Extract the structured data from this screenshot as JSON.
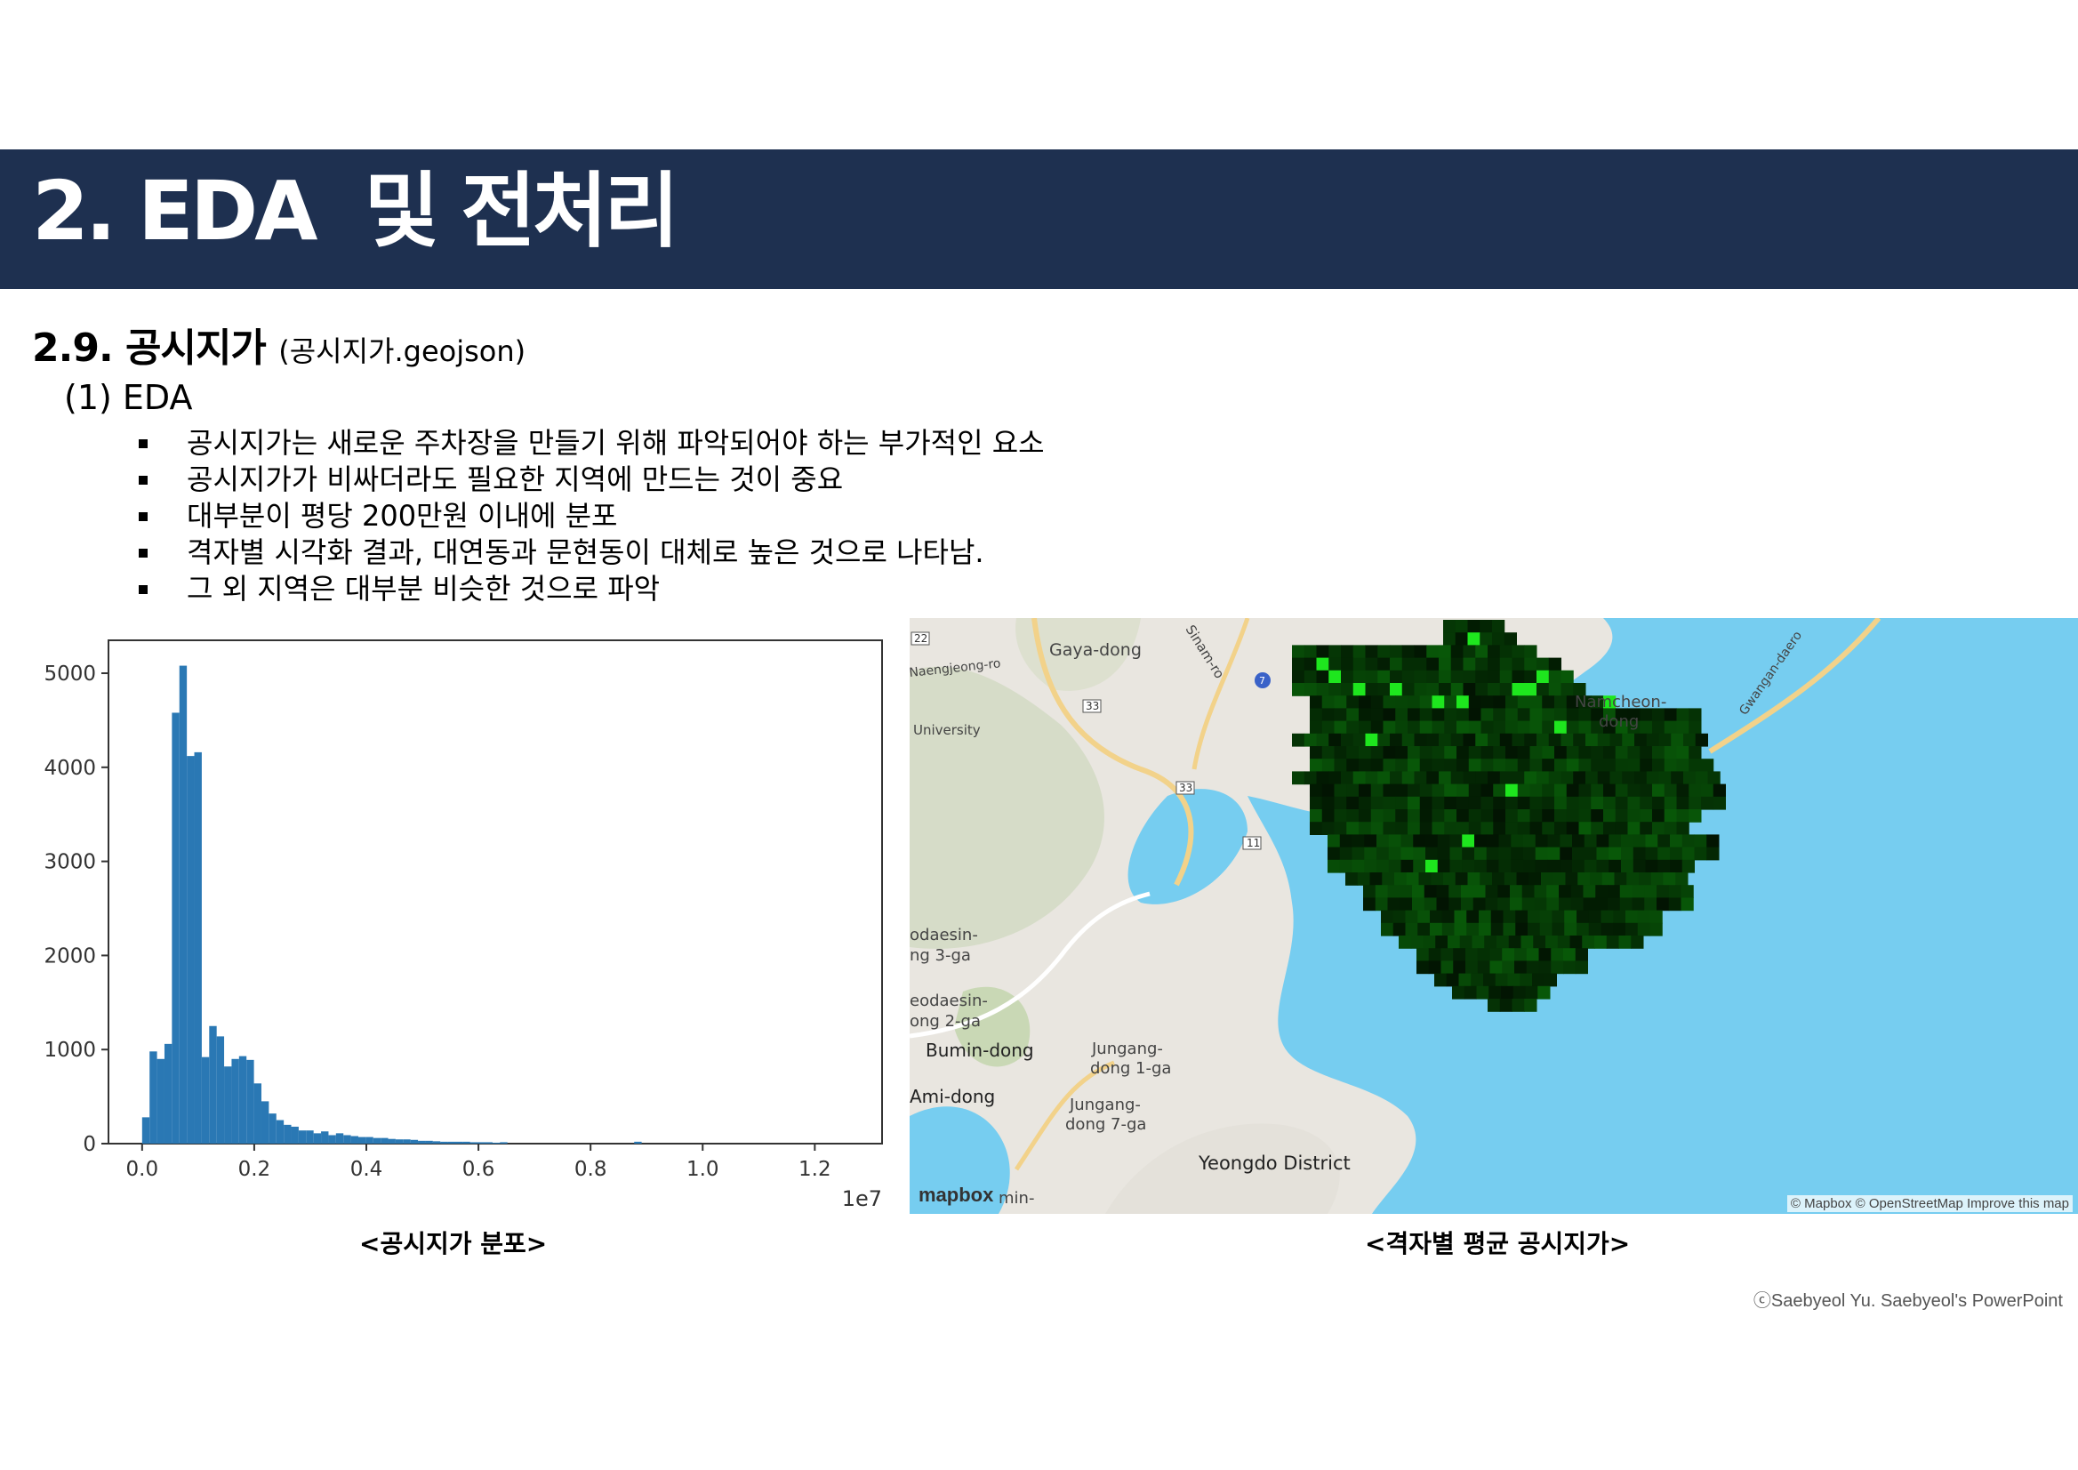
{
  "header": {
    "title": "2. EDA  및 전처리"
  },
  "section": {
    "title": "2.9. 공시지가",
    "subtitle": "(공시지가.geojson)"
  },
  "subsection": {
    "title": "(1) EDA"
  },
  "bullets": [
    "공시지가는 새로운 주차장을 만들기 위해 파악되어야 하는 부가적인 요소",
    "공시지가가 비싸더라도 필요한 지역에 만드는 것이 중요",
    "대부분이 평당 200만원 이내에 분포",
    "격자별 시각화 결과, 대연동과 문현동이 대체로 높은 것으로 나타남.",
    "그 외 지역은 대부분 비슷한 것으로 파악"
  ],
  "chart_data": {
    "type": "bar",
    "title": "",
    "xlabel": "",
    "ylabel": "",
    "x_multiplier_label": "1e7",
    "xlim": [
      -0.06,
      1.32
    ],
    "ylim": [
      0,
      5350
    ],
    "xticks": [
      0.0,
      0.2,
      0.4,
      0.6,
      0.8,
      1.0,
      1.2
    ],
    "xtick_labels": [
      "0.0",
      "0.2",
      "0.4",
      "0.6",
      "0.8",
      "1.0",
      "1.2"
    ],
    "yticks": [
      0,
      1000,
      2000,
      3000,
      4000,
      5000
    ],
    "ytick_labels": [
      "0",
      "1000",
      "2000",
      "3000",
      "4000",
      "5000"
    ],
    "bin_width": 0.0133,
    "bin_starts": [
      0.0,
      0.0133,
      0.0266,
      0.0399,
      0.0532,
      0.0665,
      0.0798,
      0.0931,
      0.1064,
      0.1197,
      0.133,
      0.1463,
      0.1596,
      0.1729,
      0.1862,
      0.1995,
      0.2128,
      0.2261,
      0.2394,
      0.2527,
      0.266,
      0.2793,
      0.2926,
      0.3059,
      0.3192,
      0.3325,
      0.3458,
      0.3591,
      0.3724,
      0.3857,
      0.399,
      0.4123,
      0.4256,
      0.4389,
      0.4522,
      0.4655,
      0.4788,
      0.4921,
      0.5054,
      0.5187,
      0.532,
      0.5453,
      0.5586,
      0.5719,
      0.5852,
      0.5985,
      0.6118,
      0.6251,
      0.6384,
      0.8778
    ],
    "values": [
      280,
      980,
      900,
      1060,
      4580,
      5080,
      4120,
      4160,
      920,
      1250,
      1140,
      820,
      900,
      930,
      890,
      640,
      450,
      320,
      250,
      200,
      180,
      140,
      140,
      110,
      130,
      90,
      110,
      90,
      80,
      70,
      70,
      60,
      60,
      50,
      45,
      45,
      40,
      30,
      30,
      25,
      20,
      20,
      20,
      20,
      15,
      15,
      15,
      10,
      15,
      20
    ],
    "bar_color": "#2a78b4"
  },
  "captions": {
    "histogram": "<공시지가 분포>",
    "map": "<격자별 평균 공시지가>"
  },
  "map": {
    "labels": [
      "Gaya-dong",
      "Naengjeong-ro",
      "University",
      "Sinam-ro",
      "Namcheon-",
      "dong",
      "Gwangan-daero",
      "odaesin-",
      "ng 3-ga",
      "eodaesin-",
      "ong 2-ga",
      "Bumin-dong",
      "Jungang-",
      "dong 1-ga",
      "Ami-dong",
      "Jungang-",
      "dong 7-ga",
      "Yeongdo District",
      "min-"
    ],
    "shields": [
      "22",
      "33",
      "33",
      "11",
      "7"
    ],
    "logo": "mapbox",
    "attribution": "© Mapbox © OpenStreetMap Improve this map",
    "colors": {
      "sea": "#76cdf0",
      "land": "#e9e6e0",
      "heat_dark": "#052805",
      "heat_bright": "#1ee61e"
    }
  },
  "credit": "ⓒSaebyeol Yu. Saebyeol's PowerPoint"
}
